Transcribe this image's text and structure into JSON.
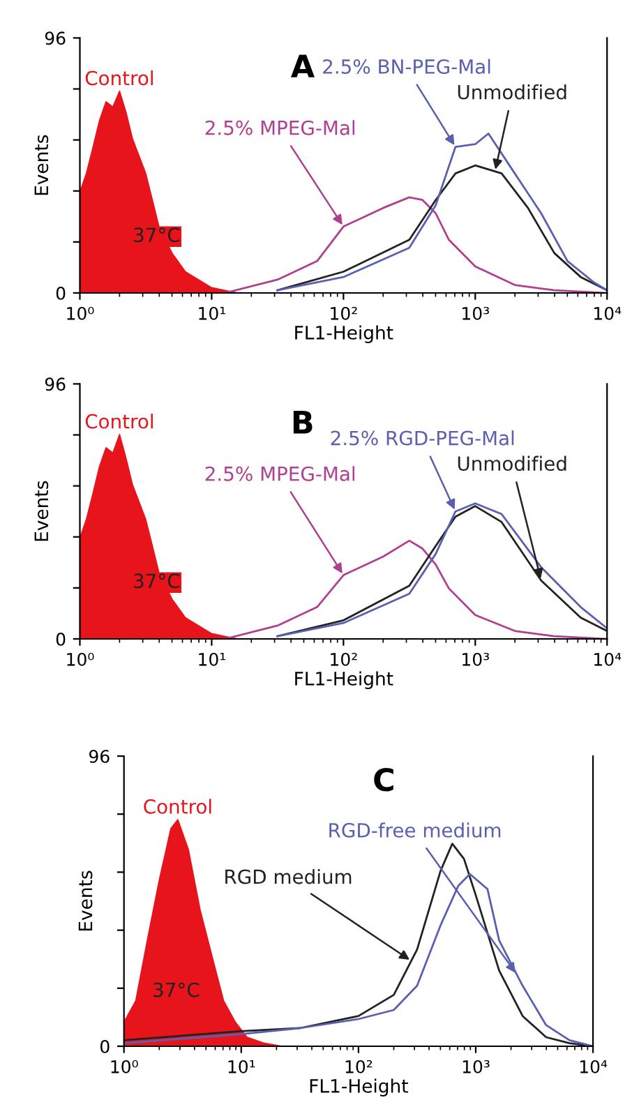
{
  "chart_data": [
    {
      "type": "line",
      "title": "A",
      "xlabel": "FL1-Height",
      "ylabel": "Events",
      "log": "x",
      "xlim": [
        1,
        10000
      ],
      "ylim": [
        0,
        96
      ],
      "xticks": [
        {
          "value": 1,
          "label": "10⁰"
        },
        {
          "value": 10,
          "label": "10¹"
        },
        {
          "value": 100,
          "label": "10²"
        },
        {
          "value": 1000,
          "label": "10³"
        },
        {
          "value": 10000,
          "label": "10⁴"
        }
      ],
      "yticks": [
        0,
        {
          "value": 19.2,
          "label": null
        },
        {
          "value": 38.4,
          "label": null
        },
        {
          "value": 57.6,
          "label": null
        },
        {
          "value": 76.8,
          "label": null
        },
        96
      ],
      "annotations": [
        "37°C"
      ],
      "series": [
        {
          "name": "Control",
          "type": "area",
          "color": "#e8141c",
          "x": [
            1,
            1.12,
            1.26,
            1.41,
            1.58,
            1.78,
            2.0,
            2.24,
            2.51,
            3.16,
            3.55,
            3.98,
            5.01,
            6.31,
            7.94,
            10,
            12.6,
            15.8
          ],
          "values": [
            38,
            45,
            55,
            65,
            72,
            70,
            76,
            68,
            58,
            45,
            35,
            25,
            15,
            8,
            5,
            2,
            1,
            0
          ]
        },
        {
          "name": "2.5% MPEG-Mal",
          "color": "#b0408f",
          "x": [
            12.6,
            31.6,
            63.1,
            100,
            200,
            316,
            398,
            501,
            631,
            1000,
            1995,
            3981,
            10000
          ],
          "values": [
            0,
            5,
            12,
            25,
            32,
            36,
            35,
            30,
            20,
            10,
            3,
            1,
            0
          ]
        },
        {
          "name": "Unmodified",
          "color": "#222222",
          "x": [
            31.6,
            100,
            316,
            501,
            708,
            1000,
            1585,
            2512,
            3981,
            6310,
            10000
          ],
          "values": [
            1,
            8,
            20,
            35,
            45,
            48,
            45,
            32,
            15,
            6,
            1
          ]
        },
        {
          "name": "2.5% BN-PEG-Mal",
          "color": "#5a5fb0",
          "x": [
            31.6,
            100,
            316,
            501,
            708,
            1000,
            1259,
            1995,
            3162,
            5012,
            7943,
            10000
          ],
          "values": [
            1,
            6,
            17,
            33,
            55,
            56,
            60,
            45,
            30,
            12,
            4,
            1
          ]
        }
      ]
    },
    {
      "type": "line",
      "title": "B",
      "xlabel": "FL1-Height",
      "ylabel": "Events",
      "log": "x",
      "xlim": [
        1,
        10000
      ],
      "ylim": [
        0,
        96
      ],
      "xticks": [
        {
          "value": 1,
          "label": "10⁰"
        },
        {
          "value": 10,
          "label": "10¹"
        },
        {
          "value": 100,
          "label": "10²"
        },
        {
          "value": 1000,
          "label": "10³"
        },
        {
          "value": 10000,
          "label": "10⁴"
        }
      ],
      "yticks": [
        0,
        {
          "value": 19.2,
          "label": null
        },
        {
          "value": 38.4,
          "label": null
        },
        {
          "value": 57.6,
          "label": null
        },
        {
          "value": 76.8,
          "label": null
        },
        96
      ],
      "annotations": [
        "37°C"
      ],
      "series": [
        {
          "name": "Control",
          "type": "area",
          "color": "#e8141c",
          "x": [
            1,
            1.12,
            1.26,
            1.41,
            1.58,
            1.78,
            2.0,
            2.24,
            2.51,
            3.16,
            3.55,
            3.98,
            5.01,
            6.31,
            7.94,
            10,
            12.6,
            15.8
          ],
          "values": [
            38,
            45,
            55,
            65,
            72,
            70,
            77,
            68,
            58,
            45,
            35,
            25,
            15,
            8,
            5,
            2,
            1,
            0
          ]
        },
        {
          "name": "2.5% MPEG-Mal",
          "color": "#b0408f",
          "x": [
            12.6,
            31.6,
            63.1,
            100,
            200,
            316,
            398,
            501,
            631,
            1000,
            1995,
            3981,
            10000
          ],
          "values": [
            0,
            5,
            12,
            24,
            31,
            37,
            34,
            28,
            19,
            9,
            3,
            1,
            0
          ]
        },
        {
          "name": "Unmodified",
          "color": "#222222",
          "x": [
            31.6,
            100,
            316,
            501,
            708,
            1000,
            1585,
            3162,
            6310,
            10000
          ],
          "values": [
            1,
            7,
            20,
            35,
            46,
            50,
            44,
            22,
            8,
            3
          ]
        },
        {
          "name": "2.5% RGD-PEG-Mal",
          "color": "#5a5fb0",
          "x": [
            31.6,
            100,
            316,
            501,
            708,
            1000,
            1585,
            3162,
            6310,
            10000
          ],
          "values": [
            1,
            6,
            17,
            32,
            48,
            51,
            47,
            27,
            12,
            4
          ]
        }
      ]
    },
    {
      "type": "line",
      "title": "C",
      "xlabel": "FL1-Height",
      "ylabel": "Events",
      "log": "x",
      "xlim": [
        1,
        10000
      ],
      "ylim": [
        0,
        96
      ],
      "xticks": [
        {
          "value": 1,
          "label": "10⁰"
        },
        {
          "value": 10,
          "label": "10¹"
        },
        {
          "value": 100,
          "label": "10²"
        },
        {
          "value": 1000,
          "label": "10³"
        },
        {
          "value": 10000,
          "label": "10⁴"
        }
      ],
      "yticks": [
        0,
        {
          "value": 19.2,
          "label": null
        },
        {
          "value": 38.4,
          "label": null
        },
        {
          "value": 57.6,
          "label": null
        },
        {
          "value": 76.8,
          "label": null
        },
        96
      ],
      "annotations": [
        "37°C"
      ],
      "series": [
        {
          "name": "Control",
          "type": "area",
          "color": "#e8141c",
          "x": [
            1,
            1.26,
            1.58,
            2.0,
            2.51,
            2.88,
            3.55,
            4.47,
            5.62,
            7.08,
            8.91,
            11.2,
            15.8,
            22.4
          ],
          "values": [
            8,
            15,
            35,
            55,
            72,
            75,
            65,
            45,
            30,
            15,
            8,
            3,
            1,
            0
          ]
        },
        {
          "name": "RGD medium",
          "color": "#222222",
          "x": [
            1,
            10,
            31.6,
            100,
            200,
            316,
            501,
            631,
            794,
            1000,
            1585,
            2512,
            3981,
            6310,
            10000
          ],
          "values": [
            2,
            5,
            6,
            10,
            17,
            32,
            58,
            67,
            62,
            50,
            25,
            10,
            3,
            1,
            0
          ]
        },
        {
          "name": "RGD-free medium",
          "color": "#5a5fb0",
          "x": [
            1,
            10,
            31.6,
            100,
            200,
            316,
            501,
            708,
            891,
            1259,
            1585,
            2512,
            3981,
            6310,
            10000
          ],
          "values": [
            1,
            4,
            6,
            9,
            12,
            20,
            40,
            53,
            57,
            52,
            35,
            20,
            7,
            2,
            0
          ]
        }
      ]
    }
  ]
}
